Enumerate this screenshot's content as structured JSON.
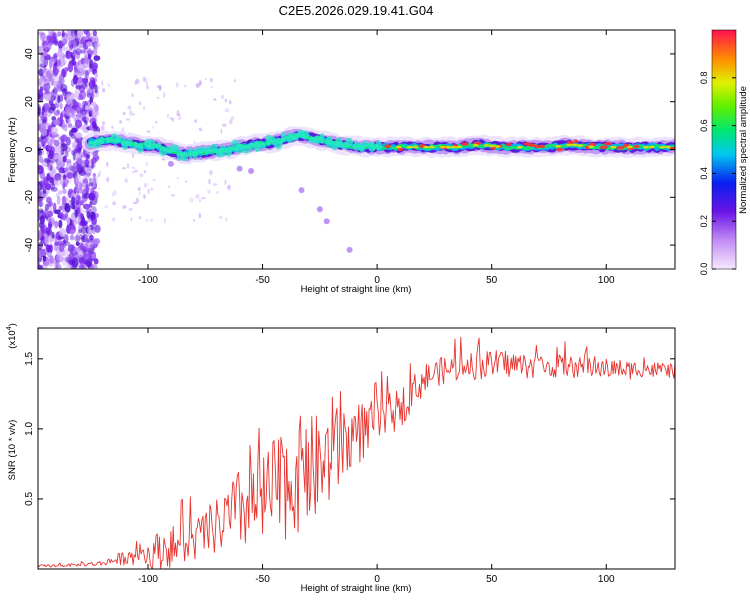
{
  "figure_title": "C2E5.2026.029.19.41.G04",
  "colors": {
    "snr_line": "#e8342f",
    "frame": "#000000",
    "background": "#ffffff"
  },
  "chart_data": [
    {
      "type": "heatmap",
      "xlabel": "Height of straight line (km)",
      "ylabel": "Frequency (Hz)",
      "xlim": [
        -148,
        130
      ],
      "ylim": [
        -50,
        50
      ],
      "x_ticks": [
        -100,
        -50,
        0,
        50,
        100
      ],
      "x_tick_labels": [
        "-100",
        "-50",
        "0",
        "50",
        "100"
      ],
      "y_ticks": [
        -40,
        -20,
        0,
        20,
        40
      ],
      "y_tick_labels": [
        "-40",
        "-20",
        "0",
        "20",
        "40"
      ],
      "ridge_frequency": {
        "x": [
          -125,
          -115,
          -105,
          -95,
          -85,
          -75,
          -65,
          -55,
          -45,
          -35,
          -25,
          -15,
          -5,
          5,
          15,
          25,
          35,
          45,
          55,
          65,
          75,
          85,
          95,
          105,
          115,
          130
        ],
        "hz": [
          3,
          4,
          2,
          1,
          -2,
          -1,
          0,
          2,
          3,
          6,
          4,
          2,
          1,
          1,
          1,
          1,
          1,
          2,
          1,
          1,
          1,
          2,
          1,
          1,
          1,
          1
        ]
      },
      "colorbar": {
        "label": "Normalized spectral amplitude",
        "range": [
          0,
          1
        ],
        "ticks": [
          0.0,
          0.2,
          0.4,
          0.6,
          0.8
        ],
        "tick_labels": [
          "0.0",
          "0.2",
          "0.4",
          "0.6",
          "0.8"
        ],
        "colormap": "rainbow"
      }
    },
    {
      "type": "line",
      "xlabel": "Height of straight line (km)",
      "ylabel": "SNR (10 * v/v)",
      "y_multiplier": "(x10",
      "y_multiplier_exp": "4",
      "y_multiplier_close": ")",
      "xlim": [
        -148,
        130
      ],
      "ylim": [
        0,
        1.72
      ],
      "x_ticks": [
        -100,
        -50,
        0,
        50,
        100
      ],
      "x_tick_labels": [
        "-100",
        "-50",
        "0",
        "50",
        "100"
      ],
      "y_ticks": [
        0.5,
        1.0,
        1.5
      ],
      "y_tick_labels": [
        "0.5",
        "1.0",
        "1.5"
      ],
      "series": [
        {
          "name": "SNR",
          "x": [
            -148,
            -130,
            -120,
            -115,
            -110,
            -100,
            -95,
            -90,
            -85,
            -80,
            -75,
            -70,
            -65,
            -60,
            -55,
            -50,
            -45,
            -40,
            -35,
            -30,
            -25,
            -20,
            -15,
            -10,
            -5,
            0,
            5,
            10,
            15,
            20,
            25,
            30,
            35,
            40,
            45,
            50,
            55,
            60,
            65,
            70,
            75,
            80,
            85,
            90,
            95,
            100,
            105,
            110,
            115,
            120,
            125,
            130
          ],
          "values": [
            0.02,
            0.03,
            0.04,
            0.06,
            0.08,
            0.1,
            0.14,
            0.16,
            0.17,
            0.2,
            0.26,
            0.3,
            0.36,
            0.42,
            0.45,
            0.48,
            0.55,
            0.62,
            0.67,
            0.7,
            0.73,
            0.8,
            0.88,
            0.95,
            1.0,
            1.05,
            1.1,
            1.15,
            1.25,
            1.35,
            1.4,
            1.42,
            1.44,
            1.45,
            1.45,
            1.46,
            1.47,
            1.46,
            1.45,
            1.45,
            1.44,
            1.45,
            1.44,
            1.43,
            1.44,
            1.43,
            1.43,
            1.42,
            1.43,
            1.42,
            1.42,
            1.42
          ],
          "noise": [
            0.01,
            0.01,
            0.02,
            0.04,
            0.05,
            0.1,
            0.14,
            0.15,
            0.15,
            0.15,
            0.17,
            0.2,
            0.25,
            0.3,
            0.32,
            0.35,
            0.38,
            0.42,
            0.42,
            0.4,
            0.38,
            0.35,
            0.3,
            0.25,
            0.2,
            0.15,
            0.15,
            0.15,
            0.12,
            0.12,
            0.1,
            0.1,
            0.1,
            0.1,
            0.1,
            0.1,
            0.1,
            0.1,
            0.09,
            0.09,
            0.08,
            0.08,
            0.08,
            0.08,
            0.07,
            0.07,
            0.07,
            0.07,
            0.06,
            0.06,
            0.06,
            0.06
          ]
        }
      ]
    }
  ]
}
